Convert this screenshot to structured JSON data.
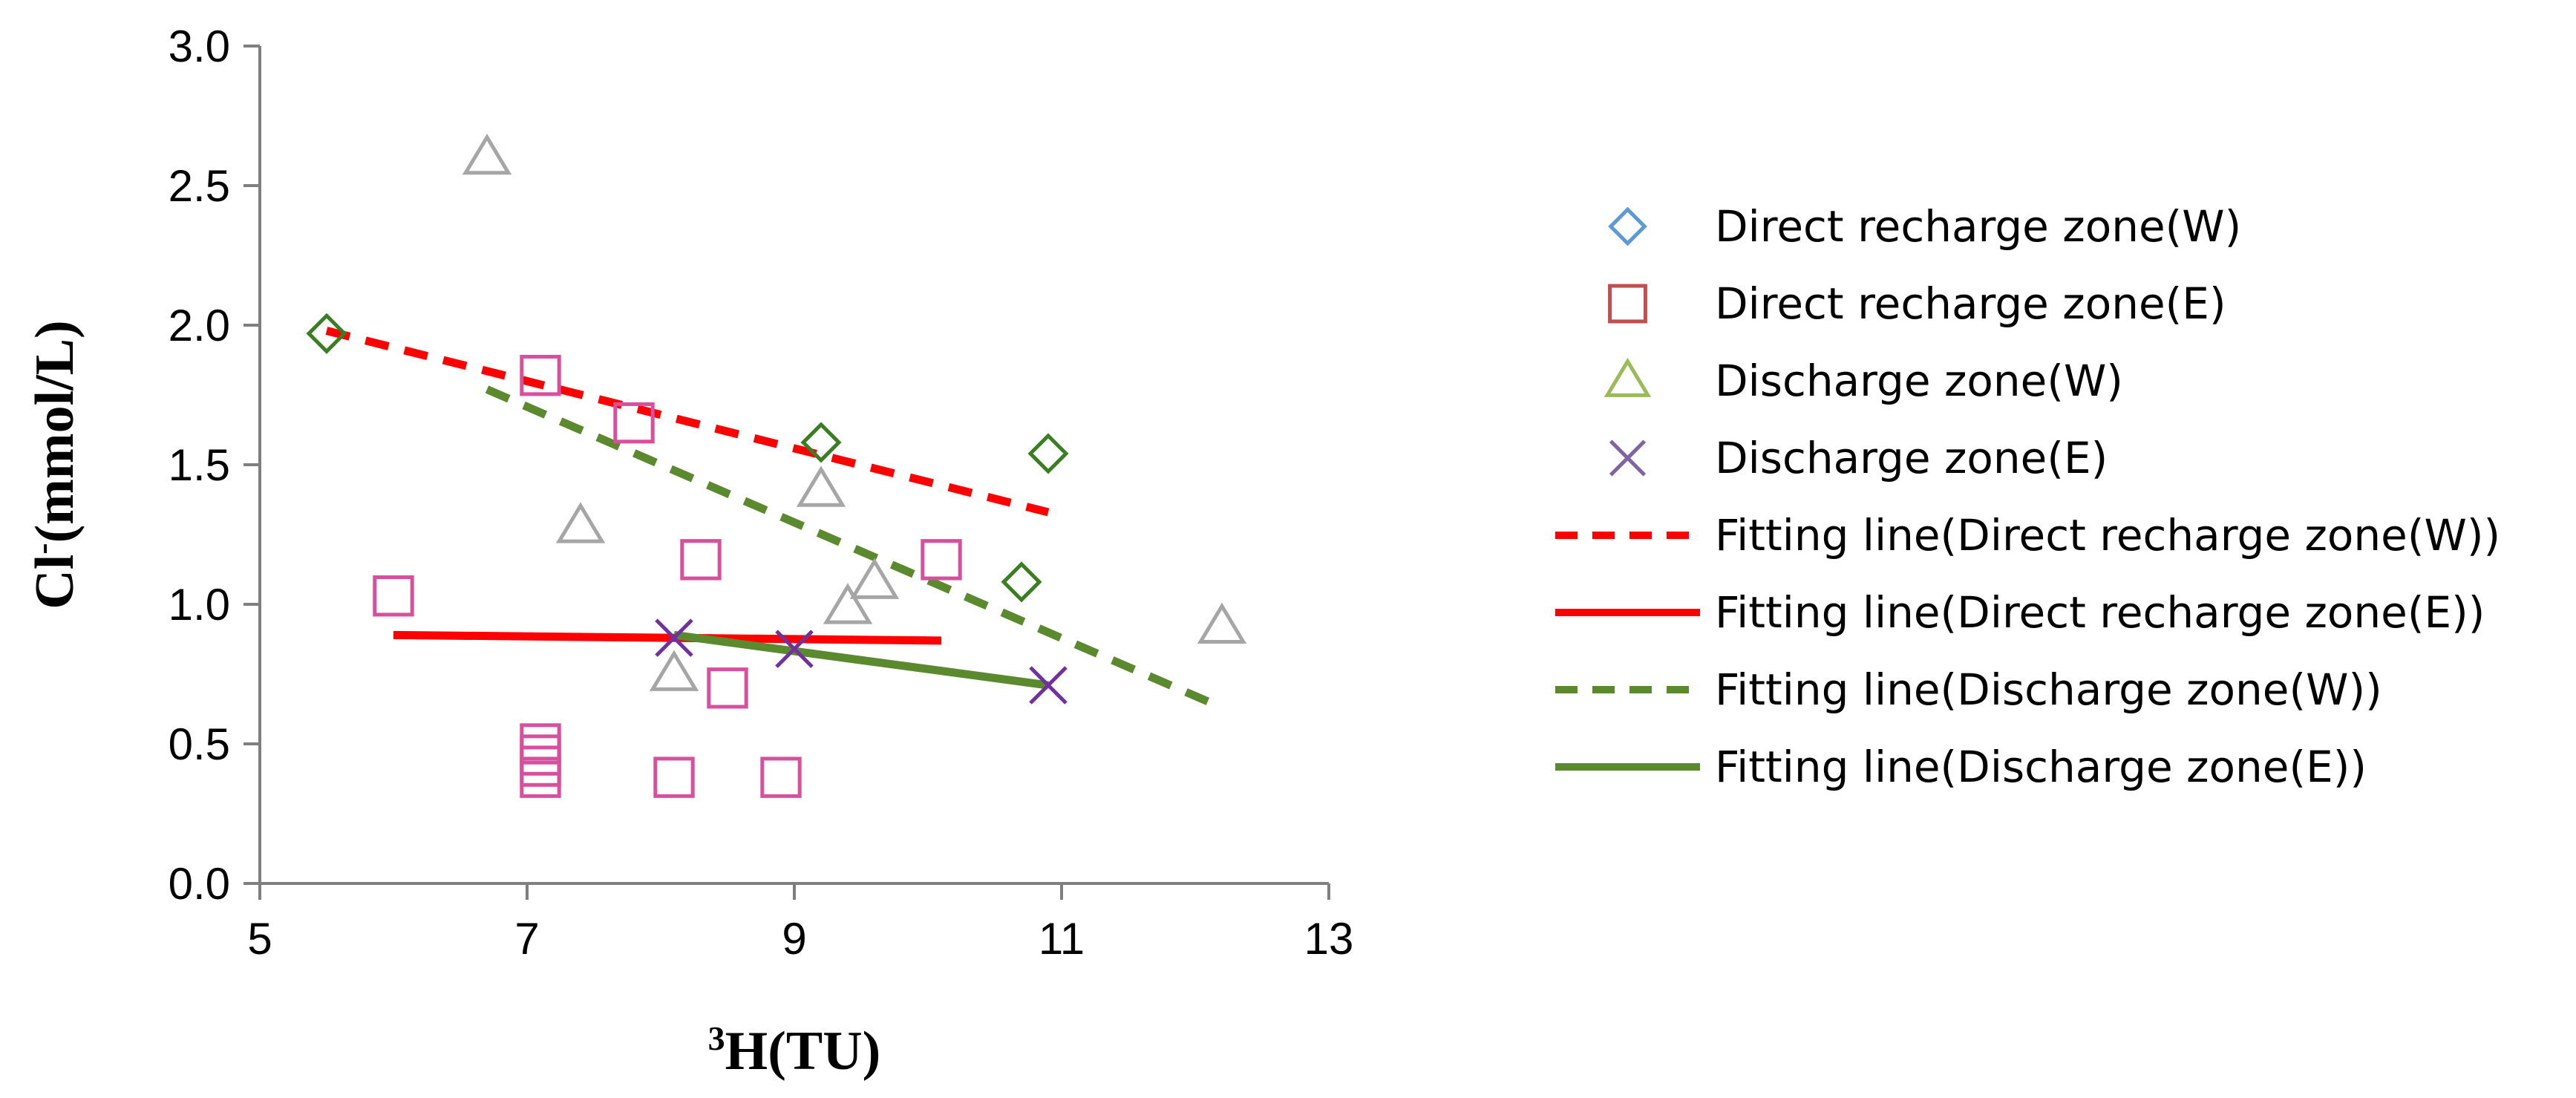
{
  "chart_data": {
    "type": "scatter",
    "title": "",
    "xlabel": {
      "superscript": "3",
      "text": "H(TU)"
    },
    "ylabel": {
      "base": "Cl",
      "superscript": "-",
      "text": "(mmol/L)"
    },
    "xlim": [
      5,
      13
    ],
    "ylim": [
      0,
      3
    ],
    "xticks": [
      5,
      7,
      9,
      11,
      13
    ],
    "xtick_labels": [
      "5",
      "7",
      "9",
      "11",
      "13"
    ],
    "yticks": [
      0,
      0.5,
      1,
      1.5,
      2,
      2.5,
      3
    ],
    "ytick_labels": [
      "0.0",
      "0.5",
      "1.0",
      "1.5",
      "2.0",
      "2.5",
      "3.0"
    ],
    "grid": false,
    "legend_position": "right",
    "series": [
      {
        "name": "Direct recharge zone(W)",
        "marker": "diamond",
        "legend_color": "#5b9bd5",
        "color": "#3a7d22",
        "points": [
          [
            5.5,
            1.97
          ],
          [
            9.2,
            1.58
          ],
          [
            10.9,
            1.54
          ],
          [
            10.7,
            1.08
          ]
        ]
      },
      {
        "name": "Direct recharge zone(E)",
        "marker": "square",
        "legend_color": "#c0504d",
        "color": "#d94f9e",
        "points": [
          [
            6.0,
            1.03
          ],
          [
            7.1,
            1.82
          ],
          [
            7.8,
            1.65
          ],
          [
            8.3,
            1.16
          ],
          [
            10.1,
            1.16
          ],
          [
            8.5,
            0.7
          ],
          [
            7.1,
            0.5
          ],
          [
            7.1,
            0.46
          ],
          [
            7.1,
            0.42
          ],
          [
            7.1,
            0.38
          ],
          [
            8.1,
            0.38
          ],
          [
            8.9,
            0.38
          ]
        ]
      },
      {
        "name": "Discharge zone(W)",
        "marker": "triangle",
        "legend_color": "#9bbb59",
        "color": "#a6a6a6",
        "points": [
          [
            6.7,
            2.6
          ],
          [
            7.4,
            1.28
          ],
          [
            9.2,
            1.41
          ],
          [
            9.4,
            0.99
          ],
          [
            9.6,
            1.08
          ],
          [
            8.1,
            0.75
          ],
          [
            12.2,
            0.92
          ]
        ]
      },
      {
        "name": "Discharge zone(E)",
        "marker": "x",
        "legend_color": "#8064a2",
        "color": "#7030a0",
        "points": [
          [
            8.1,
            0.88
          ],
          [
            9.0,
            0.84
          ],
          [
            10.9,
            0.71
          ]
        ]
      },
      {
        "name": "Fitting line(Direct recharge zone(W))",
        "marker": "line",
        "style": "dashed",
        "color": "#ff0000",
        "line": [
          [
            5.5,
            1.98
          ],
          [
            10.9,
            1.33
          ]
        ]
      },
      {
        "name": "Fitting line(Direct recharge zone(E))",
        "marker": "line",
        "style": "solid",
        "color": "#ff0000",
        "line": [
          [
            6.0,
            0.89
          ],
          [
            10.1,
            0.87
          ]
        ]
      },
      {
        "name": "Fitting line(Discharge zone(W))",
        "marker": "line",
        "style": "dashed",
        "color": "#5b8a2e",
        "line": [
          [
            6.7,
            1.77
          ],
          [
            12.2,
            0.63
          ]
        ]
      },
      {
        "name": "Fitting line(Discharge zone(E))",
        "marker": "line",
        "style": "solid",
        "color": "#5b8a2e",
        "line": [
          [
            8.1,
            0.89
          ],
          [
            10.9,
            0.71
          ]
        ]
      }
    ]
  }
}
